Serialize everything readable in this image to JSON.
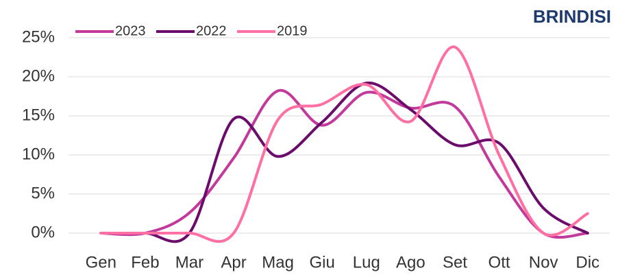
{
  "chart_data": {
    "type": "line",
    "title": "BRINDISI",
    "categories": [
      "Gen",
      "Feb",
      "Mar",
      "Apr",
      "Mag",
      "Giu",
      "Lug",
      "Ago",
      "Set",
      "Ott",
      "Nov",
      "Dic"
    ],
    "series": [
      {
        "name": "2023",
        "color": "#c2399b",
        "values": [
          0,
          0,
          2.6,
          9.6,
          18.2,
          13.8,
          18,
          16,
          16.2,
          7.2,
          0,
          0
        ]
      },
      {
        "name": "2022",
        "color": "#6b0b6b",
        "values": [
          0,
          0,
          0,
          14.6,
          9.8,
          14.2,
          19.2,
          15.8,
          11.3,
          11.5,
          3.2,
          0
        ]
      },
      {
        "name": "2019",
        "color": "#ff6fa3",
        "values": [
          0,
          0,
          0,
          0,
          14.5,
          16.5,
          19,
          14.3,
          23.8,
          10,
          0,
          2.5
        ]
      }
    ],
    "ylim": [
      0,
      25
    ],
    "yticks": [
      {
        "value": 0,
        "label": "0%"
      },
      {
        "value": 5,
        "label": "5%"
      },
      {
        "value": 10,
        "label": "10%"
      },
      {
        "value": 15,
        "label": "15%"
      },
      {
        "value": 20,
        "label": "20%"
      },
      {
        "value": 25,
        "label": "25%"
      }
    ],
    "grid": true,
    "legend": "top"
  }
}
